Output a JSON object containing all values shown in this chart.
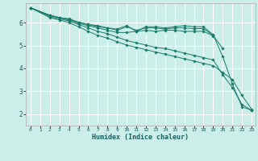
{
  "xlabel": "Humidex (Indice chaleur)",
  "bg_color": "#cceee8",
  "grid_color": "#ffffff",
  "line_color": "#1a7a6a",
  "xlim": [
    -0.5,
    23.4
  ],
  "ylim": [
    1.5,
    6.85
  ],
  "yticks": [
    2,
    3,
    4,
    5,
    6
  ],
  "xticks": [
    0,
    1,
    2,
    3,
    4,
    5,
    6,
    7,
    8,
    9,
    10,
    11,
    12,
    13,
    14,
    15,
    16,
    17,
    18,
    19,
    20,
    21,
    22,
    23
  ],
  "series": [
    {
      "x": [
        0,
        2,
        3,
        4,
        5,
        6,
        7,
        8,
        9,
        10,
        11,
        12,
        13,
        14,
        15,
        16,
        17,
        18,
        19,
        20,
        21,
        22,
        23
      ],
      "y": [
        6.65,
        6.32,
        6.22,
        6.13,
        6.02,
        5.92,
        5.82,
        5.77,
        5.72,
        5.87,
        5.62,
        5.82,
        5.82,
        5.77,
        5.82,
        5.87,
        5.82,
        5.82,
        5.47,
        4.52,
        3.32,
        2.32,
        2.17
      ]
    },
    {
      "x": [
        0,
        2,
        3,
        4,
        5,
        6,
        7,
        8,
        9,
        10,
        11,
        12,
        13,
        14,
        15,
        16,
        17,
        18,
        19,
        20
      ],
      "y": [
        6.65,
        6.32,
        6.22,
        6.17,
        6.02,
        5.92,
        5.87,
        5.77,
        5.67,
        5.82,
        5.67,
        5.77,
        5.77,
        5.72,
        5.77,
        5.77,
        5.74,
        5.74,
        5.44,
        4.87
      ]
    },
    {
      "x": [
        0,
        2,
        3,
        4,
        5,
        6,
        7,
        8,
        9,
        10,
        11,
        12,
        13,
        14,
        15,
        16,
        17,
        18,
        19
      ],
      "y": [
        6.65,
        6.32,
        6.22,
        6.12,
        5.97,
        5.87,
        5.77,
        5.67,
        5.57,
        5.57,
        5.62,
        5.67,
        5.62,
        5.67,
        5.67,
        5.62,
        5.62,
        5.62,
        5.42
      ]
    },
    {
      "x": [
        0,
        2,
        3,
        4,
        5,
        6,
        7,
        8,
        9,
        10,
        11,
        12,
        13,
        14,
        15,
        16,
        17,
        18,
        19,
        20,
        21,
        22,
        23
      ],
      "y": [
        6.65,
        6.27,
        6.17,
        6.07,
        5.92,
        5.77,
        5.62,
        5.52,
        5.37,
        5.22,
        5.12,
        5.02,
        4.92,
        4.87,
        4.77,
        4.67,
        4.57,
        4.47,
        4.37,
        3.72,
        3.17,
        2.42,
        2.17
      ]
    },
    {
      "x": [
        0,
        2,
        3,
        4,
        5,
        6,
        7,
        8,
        9,
        10,
        11,
        12,
        13,
        14,
        15,
        16,
        17,
        18,
        19,
        20,
        21,
        22,
        23
      ],
      "y": [
        6.65,
        6.22,
        6.12,
        6.0,
        5.82,
        5.62,
        5.44,
        5.32,
        5.17,
        5.02,
        4.92,
        4.82,
        4.72,
        4.62,
        4.52,
        4.42,
        4.32,
        4.22,
        4.12,
        3.82,
        3.52,
        2.82,
        2.22
      ]
    }
  ]
}
